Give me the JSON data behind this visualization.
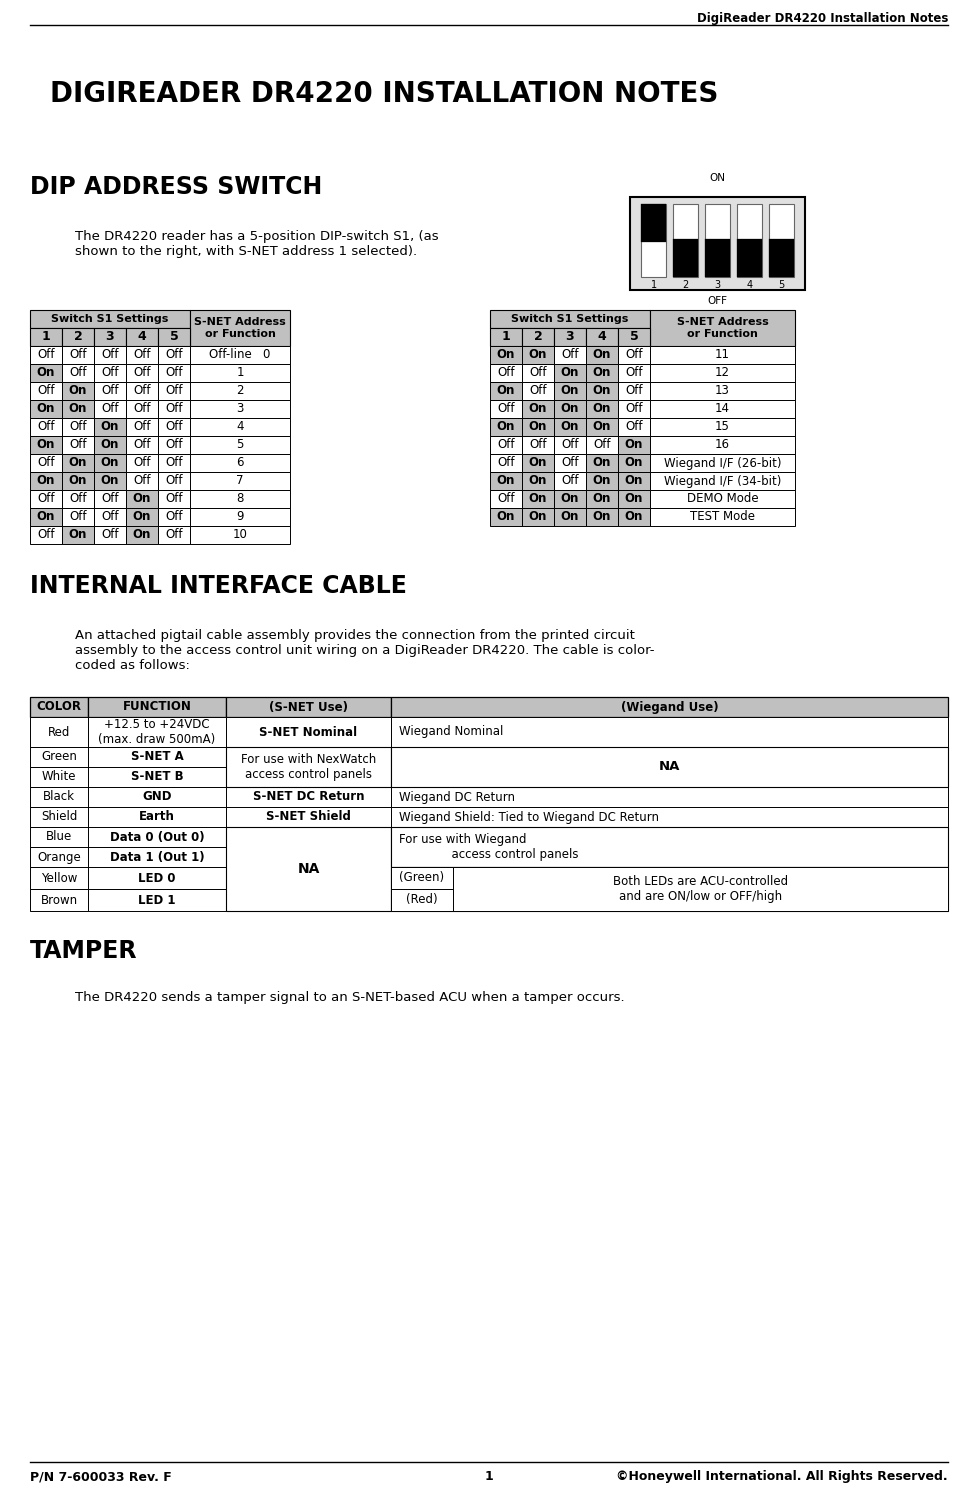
{
  "header_text": "DigiReader DR4220 Installation Notes",
  "title": "DIGIREADER DR4220 INSTALLATION NOTES",
  "section1": "DIP ADDRESS SWITCH",
  "dip_desc": "The DR4220 reader has a 5-position DIP-switch S1, (as\nshown to the right, with S-NET address 1 selected).",
  "section2": "INTERNAL INTERFACE CABLE",
  "cable_desc": "An attached pigtail cable assembly provides the connection from the printed circuit\nassembly to the access control unit wiring on a DigiReader DR4220. The cable is color-\ncoded as follows:",
  "section3": "TAMPER",
  "tamper_desc": "The DR4220 sends a tamper signal to an S-NET-based ACU when a tamper occurs.",
  "footer_left": "P/N 7-600033 Rev. F",
  "footer_center": "1",
  "footer_right": "©Honeywell International. All Rights Reserved.",
  "left_table_rows": [
    [
      "Off",
      "Off",
      "Off",
      "Off",
      "Off",
      "Off-line   0"
    ],
    [
      "On",
      "Off",
      "Off",
      "Off",
      "Off",
      "1"
    ],
    [
      "Off",
      "On",
      "Off",
      "Off",
      "Off",
      "2"
    ],
    [
      "On",
      "On",
      "Off",
      "Off",
      "Off",
      "3"
    ],
    [
      "Off",
      "Off",
      "On",
      "Off",
      "Off",
      "4"
    ],
    [
      "On",
      "Off",
      "On",
      "Off",
      "Off",
      "5"
    ],
    [
      "Off",
      "On",
      "On",
      "Off",
      "Off",
      "6"
    ],
    [
      "On",
      "On",
      "On",
      "Off",
      "Off",
      "7"
    ],
    [
      "Off",
      "Off",
      "Off",
      "On",
      "Off",
      "8"
    ],
    [
      "On",
      "Off",
      "Off",
      "On",
      "Off",
      "9"
    ],
    [
      "Off",
      "On",
      "Off",
      "On",
      "Off",
      "10"
    ]
  ],
  "right_table_rows": [
    [
      "On",
      "On",
      "Off",
      "On",
      "Off",
      "11"
    ],
    [
      "Off",
      "Off",
      "On",
      "On",
      "Off",
      "12"
    ],
    [
      "On",
      "Off",
      "On",
      "On",
      "Off",
      "13"
    ],
    [
      "Off",
      "On",
      "On",
      "On",
      "Off",
      "14"
    ],
    [
      "On",
      "On",
      "On",
      "On",
      "Off",
      "15"
    ],
    [
      "Off",
      "Off",
      "Off",
      "Off",
      "On",
      "16"
    ],
    [
      "Off",
      "On",
      "Off",
      "On",
      "On",
      "Wiegand I/F (26-bit)"
    ],
    [
      "On",
      "On",
      "Off",
      "On",
      "On",
      "Wiegand I/F (34-bit)"
    ],
    [
      "Off",
      "On",
      "On",
      "On",
      "On",
      "DEMO Mode"
    ],
    [
      "On",
      "On",
      "On",
      "On",
      "On",
      "TEST Mode"
    ]
  ],
  "bg_color": "#ffffff",
  "table_header_bg": "#c0c0c0",
  "table_row_bg_on": "#c0c0c0",
  "sw_states": [
    true,
    false,
    false,
    false,
    false
  ]
}
